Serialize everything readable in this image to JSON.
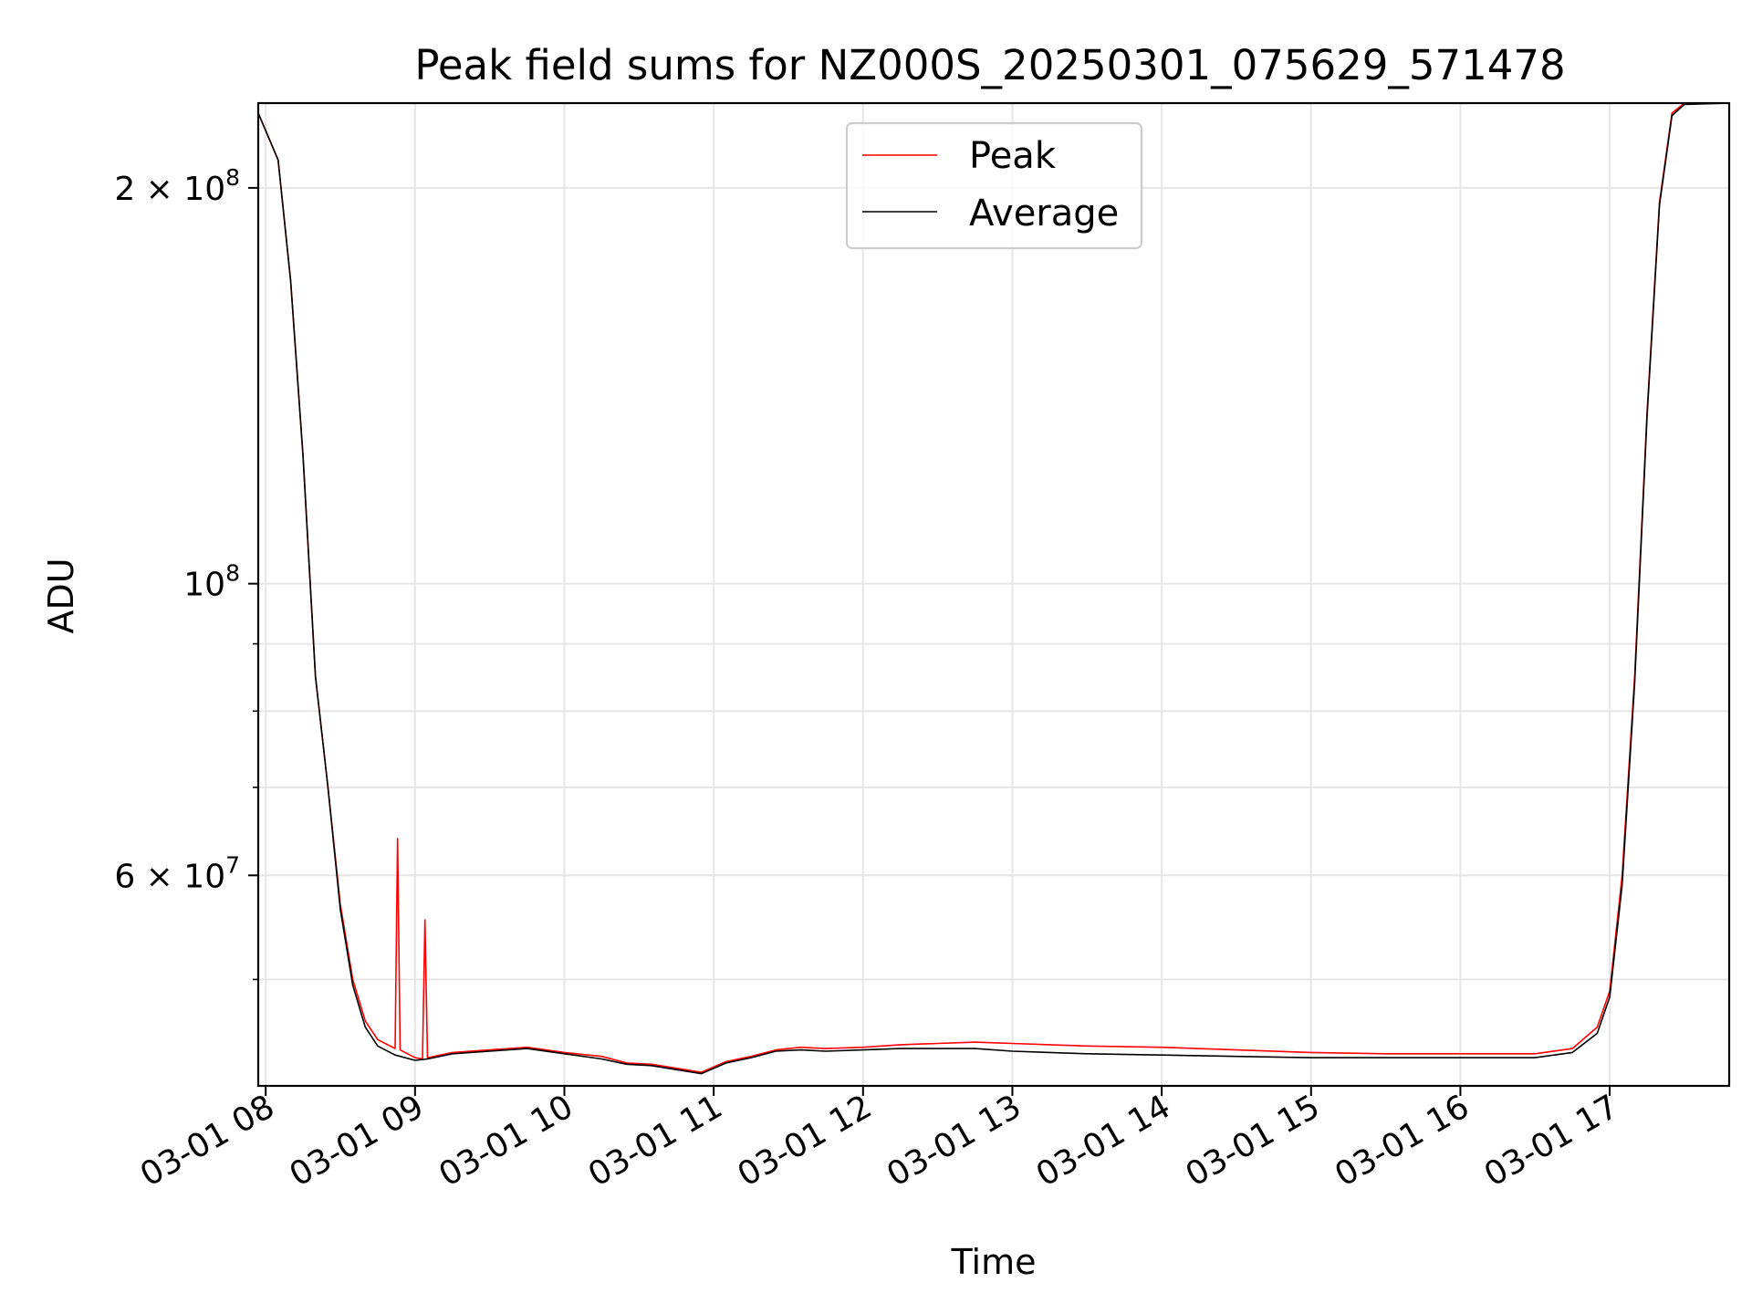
{
  "chart_data": {
    "type": "line",
    "title": "Peak field sums for NZ000S_20250301_075629_571478",
    "xlabel": "Time",
    "ylabel": "ADU",
    "yscale": "log",
    "xlim": [
      "2025-03-01 07:57",
      "2025-03-01 17:48"
    ],
    "ylim": [
      41500000,
      232000000
    ],
    "grid": true,
    "legend_position": "top-center",
    "x_ticks": [
      {
        "value": "2025-03-01 08:00",
        "label": "03-01 08"
      },
      {
        "value": "2025-03-01 09:00",
        "label": "03-01 09"
      },
      {
        "value": "2025-03-01 10:00",
        "label": "03-01 10"
      },
      {
        "value": "2025-03-01 11:00",
        "label": "03-01 11"
      },
      {
        "value": "2025-03-01 12:00",
        "label": "03-01 12"
      },
      {
        "value": "2025-03-01 13:00",
        "label": "03-01 13"
      },
      {
        "value": "2025-03-01 14:00",
        "label": "03-01 14"
      },
      {
        "value": "2025-03-01 15:00",
        "label": "03-01 15"
      },
      {
        "value": "2025-03-01 16:00",
        "label": "03-01 16"
      },
      {
        "value": "2025-03-01 17:00",
        "label": "03-01 17"
      }
    ],
    "y_ticks": [
      {
        "value": 200000000,
        "mantissa": "2",
        "times": "×",
        "base": "10",
        "exp": "8"
      },
      {
        "value": 100000000,
        "mantissa": "",
        "times": "",
        "base": "10",
        "exp": "8"
      },
      {
        "value": 60000000,
        "mantissa": "6",
        "times": "×",
        "base": "10",
        "exp": "7"
      }
    ],
    "y_minor_ticks": [
      50000000,
      70000000,
      80000000,
      90000000
    ],
    "series": [
      {
        "name": "Peak",
        "color": "#ff0000",
        "points": [
          [
            "2025-03-01 07:57",
            228000000
          ],
          [
            "2025-03-01 08:05",
            210000000
          ],
          [
            "2025-03-01 08:10",
            170000000
          ],
          [
            "2025-03-01 08:15",
            125000000
          ],
          [
            "2025-03-01 08:20",
            85000000
          ],
          [
            "2025-03-01 08:25",
            70000000
          ],
          [
            "2025-03-01 08:30",
            57000000
          ],
          [
            "2025-03-01 08:35",
            50000000
          ],
          [
            "2025-03-01 08:40",
            46500000
          ],
          [
            "2025-03-01 08:45",
            45000000
          ],
          [
            "2025-03-01 08:52",
            44300000
          ],
          [
            "2025-03-01 08:53",
            64000000
          ],
          [
            "2025-03-01 08:54",
            44200000
          ],
          [
            "2025-03-01 09:00",
            43600000
          ],
          [
            "2025-03-01 09:03",
            43500000
          ],
          [
            "2025-03-01 09:04",
            55500000
          ],
          [
            "2025-03-01 09:05",
            43600000
          ],
          [
            "2025-03-01 09:15",
            44000000
          ],
          [
            "2025-03-01 09:30",
            44200000
          ],
          [
            "2025-03-01 09:45",
            44400000
          ],
          [
            "2025-03-01 10:00",
            44000000
          ],
          [
            "2025-03-01 10:15",
            43700000
          ],
          [
            "2025-03-01 10:25",
            43200000
          ],
          [
            "2025-03-01 10:35",
            43100000
          ],
          [
            "2025-03-01 10:45",
            42800000
          ],
          [
            "2025-03-01 10:55",
            42500000
          ],
          [
            "2025-03-01 11:05",
            43300000
          ],
          [
            "2025-03-01 11:15",
            43700000
          ],
          [
            "2025-03-01 11:25",
            44200000
          ],
          [
            "2025-03-01 11:35",
            44400000
          ],
          [
            "2025-03-01 11:45",
            44300000
          ],
          [
            "2025-03-01 12:00",
            44400000
          ],
          [
            "2025-03-01 12:15",
            44600000
          ],
          [
            "2025-03-01 12:30",
            44700000
          ],
          [
            "2025-03-01 12:45",
            44800000
          ],
          [
            "2025-03-01 13:00",
            44700000
          ],
          [
            "2025-03-01 13:30",
            44500000
          ],
          [
            "2025-03-01 14:00",
            44400000
          ],
          [
            "2025-03-01 14:30",
            44200000
          ],
          [
            "2025-03-01 15:00",
            44000000
          ],
          [
            "2025-03-01 15:30",
            43900000
          ],
          [
            "2025-03-01 16:00",
            43900000
          ],
          [
            "2025-03-01 16:30",
            43900000
          ],
          [
            "2025-03-01 16:45",
            44300000
          ],
          [
            "2025-03-01 16:55",
            46000000
          ],
          [
            "2025-03-01 17:00",
            49000000
          ],
          [
            "2025-03-01 17:05",
            60000000
          ],
          [
            "2025-03-01 17:10",
            85000000
          ],
          [
            "2025-03-01 17:15",
            135000000
          ],
          [
            "2025-03-01 17:20",
            195000000
          ],
          [
            "2025-03-01 17:25",
            228000000
          ],
          [
            "2025-03-01 17:30",
            232000000
          ],
          [
            "2025-03-01 17:48",
            232000000
          ]
        ]
      },
      {
        "name": "Average",
        "color": "#000000",
        "points": [
          [
            "2025-03-01 07:57",
            228000000
          ],
          [
            "2025-03-01 08:05",
            210000000
          ],
          [
            "2025-03-01 08:10",
            170000000
          ],
          [
            "2025-03-01 08:15",
            125000000
          ],
          [
            "2025-03-01 08:20",
            85000000
          ],
          [
            "2025-03-01 08:25",
            70000000
          ],
          [
            "2025-03-01 08:30",
            56500000
          ],
          [
            "2025-03-01 08:35",
            49500000
          ],
          [
            "2025-03-01 08:40",
            46000000
          ],
          [
            "2025-03-01 08:45",
            44500000
          ],
          [
            "2025-03-01 08:52",
            43800000
          ],
          [
            "2025-03-01 09:00",
            43400000
          ],
          [
            "2025-03-01 09:05",
            43500000
          ],
          [
            "2025-03-01 09:15",
            43900000
          ],
          [
            "2025-03-01 09:30",
            44100000
          ],
          [
            "2025-03-01 09:45",
            44300000
          ],
          [
            "2025-03-01 10:00",
            43900000
          ],
          [
            "2025-03-01 10:15",
            43500000
          ],
          [
            "2025-03-01 10:25",
            43100000
          ],
          [
            "2025-03-01 10:35",
            43000000
          ],
          [
            "2025-03-01 10:45",
            42700000
          ],
          [
            "2025-03-01 10:55",
            42400000
          ],
          [
            "2025-03-01 11:05",
            43200000
          ],
          [
            "2025-03-01 11:15",
            43600000
          ],
          [
            "2025-03-01 11:25",
            44100000
          ],
          [
            "2025-03-01 11:35",
            44200000
          ],
          [
            "2025-03-01 11:45",
            44100000
          ],
          [
            "2025-03-01 12:00",
            44200000
          ],
          [
            "2025-03-01 12:15",
            44300000
          ],
          [
            "2025-03-01 12:30",
            44300000
          ],
          [
            "2025-03-01 12:45",
            44300000
          ],
          [
            "2025-03-01 13:00",
            44100000
          ],
          [
            "2025-03-01 13:30",
            43900000
          ],
          [
            "2025-03-01 14:00",
            43800000
          ],
          [
            "2025-03-01 14:30",
            43700000
          ],
          [
            "2025-03-01 15:00",
            43600000
          ],
          [
            "2025-03-01 15:30",
            43600000
          ],
          [
            "2025-03-01 16:00",
            43600000
          ],
          [
            "2025-03-01 16:30",
            43600000
          ],
          [
            "2025-03-01 16:45",
            44000000
          ],
          [
            "2025-03-01 16:55",
            45500000
          ],
          [
            "2025-03-01 17:00",
            48500000
          ],
          [
            "2025-03-01 17:05",
            59000000
          ],
          [
            "2025-03-01 17:10",
            84000000
          ],
          [
            "2025-03-01 17:15",
            134000000
          ],
          [
            "2025-03-01 17:20",
            194000000
          ],
          [
            "2025-03-01 17:25",
            227000000
          ],
          [
            "2025-03-01 17:30",
            231500000
          ],
          [
            "2025-03-01 17:48",
            232000000
          ]
        ]
      }
    ]
  }
}
